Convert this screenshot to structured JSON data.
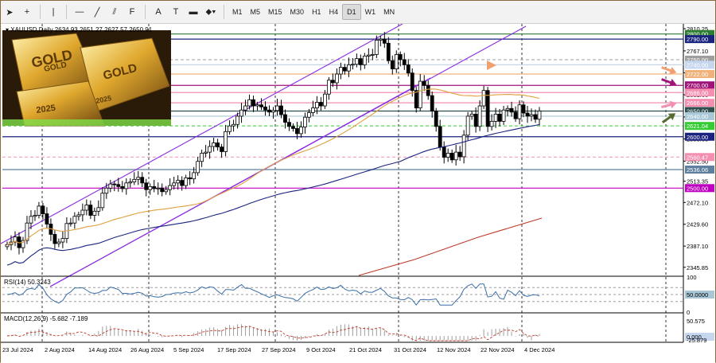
{
  "toolbar": {
    "tools": [
      {
        "icon": "cursor-icon",
        "glyph": "➤"
      },
      {
        "icon": "crosshair-icon",
        "glyph": "+"
      },
      {
        "icon": "vertical-line-icon",
        "glyph": "|"
      },
      {
        "icon": "horizontal-line-icon",
        "glyph": "—"
      },
      {
        "icon": "trendline-icon",
        "glyph": "╱"
      },
      {
        "icon": "equidistant-channel-icon",
        "glyph": "⫽"
      },
      {
        "icon": "fibonacci-icon",
        "glyph": "F"
      },
      {
        "icon": "text-icon",
        "glyph": "A"
      },
      {
        "icon": "text-label-icon",
        "glyph": "T"
      },
      {
        "icon": "rectangle-icon",
        "glyph": "▬"
      },
      {
        "icon": "shapes-menu-icon",
        "glyph": "⬥▾"
      }
    ],
    "timeframes": [
      "M1",
      "M5",
      "M15",
      "M30",
      "H1",
      "H4",
      "D1",
      "W1",
      "MN"
    ],
    "active_timeframe": "D1"
  },
  "header": {
    "symbol_line": "XAUUSD,Daily  2634.93 2651.27 2627.57 2650.91"
  },
  "price_scale": {
    "labels": [
      {
        "value": 2810.25,
        "text": "2810.25"
      },
      {
        "value": 2767.1,
        "text": "2767.10"
      },
      {
        "value": 2724.25,
        "text": "2724.25"
      },
      {
        "value": 2681.6,
        "text": "2681.60"
      },
      {
        "value": 2638.5,
        "text": "2638.50"
      },
      {
        "value": 2595.65,
        "text": "2595.65"
      },
      {
        "value": 2552.5,
        "text": "2552.50"
      },
      {
        "value": 2513.35,
        "text": "2513.35"
      },
      {
        "value": 2472.1,
        "text": "2472.10"
      },
      {
        "value": 2429.6,
        "text": "2429.60"
      },
      {
        "value": 2387.1,
        "text": "2387.10"
      },
      {
        "value": 2345.85,
        "text": "2345.85"
      }
    ],
    "levels": [
      {
        "value": 2800.0,
        "text": "2800.00",
        "color": "#2e7d32",
        "style": "solid"
      },
      {
        "value": 2790.0,
        "text": "2790.00",
        "color": "#1a237e",
        "style": "solid"
      },
      {
        "value": 2750.0,
        "text": "2750.00",
        "color": "#9e9e9e",
        "style": "dash"
      },
      {
        "value": 2740.0,
        "text": "2740.00",
        "color": "#c6d6ef",
        "style": "solid"
      },
      {
        "value": 2722.0,
        "text": "2722.00",
        "color": "#f0b27a",
        "style": "solid"
      },
      {
        "value": 2700.0,
        "text": "2700.00",
        "color": "#a0147a",
        "style": "solid"
      },
      {
        "value": 2686.0,
        "text": "2686.00",
        "color": "#f48fb1",
        "style": "solid"
      },
      {
        "value": 2666.0,
        "text": "2666.00",
        "color": "#f48fb1",
        "style": "solid"
      },
      {
        "value": 2650.0,
        "text": "2650.00",
        "color": "#2f4f4f",
        "style": "solid"
      },
      {
        "value": 2640.0,
        "text": "2640.00",
        "color": "#a8c8d8",
        "style": "solid"
      },
      {
        "value": 2621.04,
        "text": "2621.04",
        "color": "#33cc33",
        "style": "dash"
      },
      {
        "value": 2600.0,
        "text": "2600.00",
        "color": "#1a237e",
        "style": "solid"
      },
      {
        "value": 2560.47,
        "text": "2560.47",
        "color": "#f48fb1",
        "style": "dash"
      },
      {
        "value": 2536.06,
        "text": "2536.06",
        "color": "#5f7f9f",
        "style": "solid"
      },
      {
        "value": 2500.0,
        "text": "2500.00",
        "color": "#c000c0",
        "style": "solid"
      }
    ]
  },
  "date_axis": [
    "23 Jul 2024",
    "2 Aug 2024",
    "14 Aug 2024",
    "26 Aug 2024",
    "5 Sep 2024",
    "17 Sep 2024",
    "27 Sep 2024",
    "9 Oct 2024",
    "21 Oct 2024",
    "31 Oct 2024",
    "12 Nov 2024",
    "22 Nov 2024",
    "4 Dec 2024"
  ],
  "rsi": {
    "label": "RSI(14) 50.3243",
    "scale": [
      {
        "value": 100,
        "text": "100"
      },
      {
        "value": 50,
        "text": "50.0000"
      },
      {
        "value": 0,
        "text": "0"
      }
    ],
    "current": 50.3243
  },
  "macd": {
    "label": "MACD(12,26,9) -5.682 -7.189",
    "scale": [
      {
        "text": "50.575"
      },
      {
        "text": "0.000"
      },
      {
        "text": "-25.879"
      }
    ],
    "main": -5.682,
    "signal": -7.189
  },
  "overlay_image": {
    "description_text": [
      "GOLD",
      "GOLD",
      "GOLD",
      "2025",
      "2025"
    ]
  },
  "colors": {
    "bull": "#ffffff",
    "bear": "#000000",
    "candle_outline": "#000000",
    "ma_fast": "#e0a040",
    "ma_mid": "#1a237e",
    "ma_slow": "#c0392b",
    "channel": "#8a2be2"
  },
  "chart_data": {
    "type": "candlestick",
    "symbol": "XAUUSD",
    "timeframe": "Daily",
    "last_ohlc": {
      "open": 2634.93,
      "high": 2651.27,
      "low": 2627.57,
      "close": 2650.91
    },
    "ylim": [
      2330,
      2815
    ],
    "close_series": [
      2390,
      2395,
      2405,
      2384,
      2398,
      2432,
      2445,
      2447,
      2465,
      2450,
      2430,
      2410,
      2392,
      2395,
      2402,
      2431,
      2432,
      2445,
      2448,
      2457,
      2467,
      2447,
      2455,
      2462,
      2490,
      2500,
      2508,
      2507,
      2503,
      2499,
      2510,
      2512,
      2517,
      2521,
      2510,
      2497,
      2503,
      2499,
      2500,
      2493,
      2497,
      2505,
      2510,
      2515,
      2505,
      2520,
      2518,
      2530,
      2552,
      2568,
      2570,
      2581,
      2588,
      2580,
      2571,
      2610,
      2621,
      2624,
      2640,
      2652,
      2660,
      2672,
      2660,
      2662,
      2658,
      2652,
      2648,
      2651,
      2660,
      2643,
      2628,
      2620,
      2616,
      2606,
      2619,
      2638,
      2647,
      2656,
      2667,
      2660,
      2683,
      2710,
      2705,
      2722,
      2735,
      2728,
      2740,
      2741,
      2752,
      2740,
      2757,
      2759,
      2760,
      2788,
      2790,
      2782,
      2748,
      2732,
      2760,
      2750,
      2740,
      2724,
      2690,
      2656,
      2708,
      2700,
      2680,
      2650,
      2620,
      2580,
      2560,
      2568,
      2555,
      2570,
      2561,
      2603,
      2640,
      2644,
      2620,
      2660,
      2690,
      2620,
      2630,
      2644,
      2630,
      2652,
      2655,
      2648,
      2635,
      2662,
      2646,
      2640,
      2643,
      2634,
      2650
    ],
    "ma_fast_values": "50-period trailing moving average of close_series",
    "channel": "ascending parallel channel drawn from Jul to Dec"
  }
}
